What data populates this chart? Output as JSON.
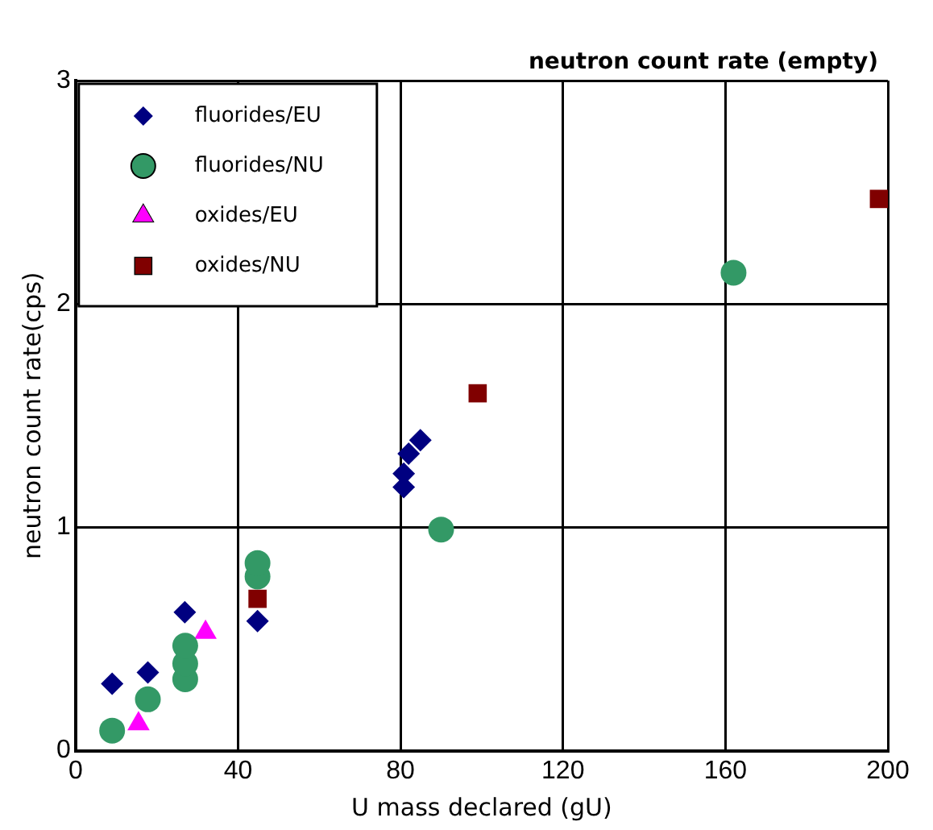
{
  "chart_data": {
    "type": "scatter",
    "title": "neutron count rate (empty)",
    "xlabel": "U mass declared (gU)",
    "ylabel": "neutron count rate(cps)",
    "xlim": [
      0,
      200
    ],
    "xticks": [
      0,
      40,
      80,
      120,
      160,
      200
    ],
    "ylim": [
      0,
      3
    ],
    "yticks": [
      0,
      1,
      2,
      3
    ],
    "grid": true,
    "legend": "top left",
    "series": [
      {
        "name": "fluorides/EU",
        "color": "#000080",
        "marker": "diamond",
        "x": [
          9,
          17.8,
          26.9,
          44.8,
          80.8,
          80.8,
          82,
          84.9
        ],
        "values": [
          0.3,
          0.35,
          0.62,
          0.58,
          1.18,
          1.24,
          1.33,
          1.39
        ]
      },
      {
        "name": "fluorides/NU",
        "color": "#339966",
        "marker": "circle",
        "x": [
          9,
          17.8,
          27,
          27,
          27,
          44.8,
          44.8,
          90,
          162
        ],
        "values": [
          0.09,
          0.23,
          0.32,
          0.39,
          0.47,
          0.78,
          0.84,
          0.99,
          2.14
        ]
      },
      {
        "name": "oxides/EU",
        "color": "#ff00ff",
        "marker": "triangle",
        "x": [
          15.5,
          32
        ],
        "values": [
          0.12,
          0.53
        ]
      },
      {
        "name": "oxides/NU",
        "color": "#800000",
        "marker": "square",
        "x": [
          44.8,
          99,
          197.8
        ],
        "values": [
          0.68,
          1.6,
          2.47
        ]
      }
    ]
  }
}
